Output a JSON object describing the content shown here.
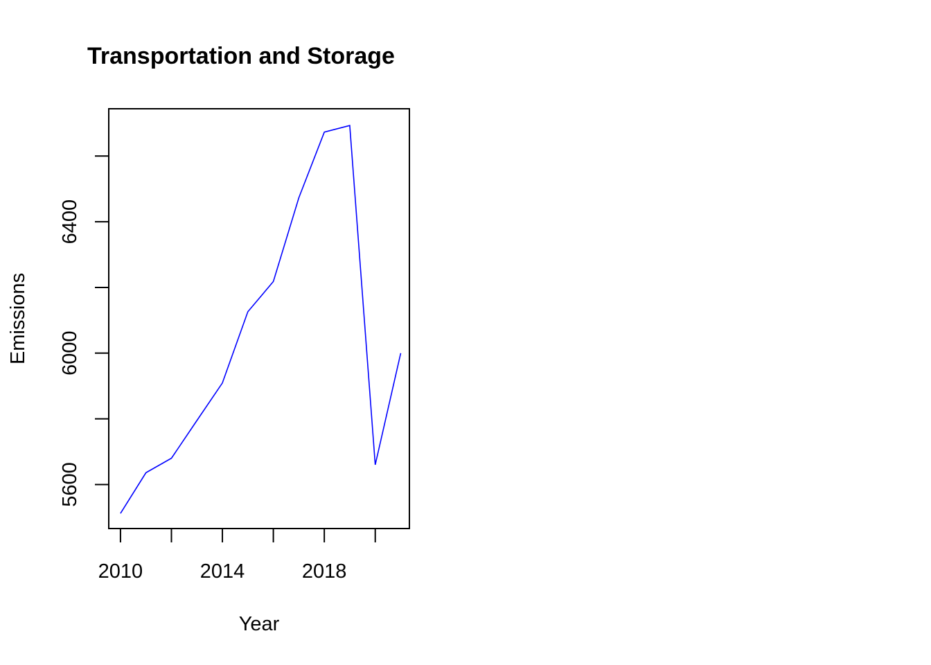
{
  "chart_data": {
    "type": "line",
    "title": "Transportation and Storage",
    "xlabel": "Year",
    "ylabel": "Emissions",
    "x": [
      2010,
      2011,
      2012,
      2013,
      2014,
      2015,
      2016,
      2017,
      2018,
      2019,
      2020,
      2021
    ],
    "series": [
      {
        "values": [
          5512,
          5636,
          5680,
          5795,
          5909,
          6126,
          6218,
          6473,
          6673,
          6693,
          5660,
          6000
        ],
        "color": "#0000ff"
      }
    ],
    "xlim": [
      2009.54,
      2021.34
    ],
    "ylim": [
      5466,
      6744
    ],
    "x_ticks": [
      2010,
      2012,
      2014,
      2016,
      2018,
      2020
    ],
    "x_tick_labels": [
      "2010",
      "",
      "2014",
      "",
      "2018",
      ""
    ],
    "y_ticks": [
      5600,
      5800,
      6000,
      6200,
      6400,
      6600
    ],
    "y_tick_labels": [
      "5600",
      "",
      "6000",
      "",
      "6400",
      ""
    ],
    "grid": false,
    "legend": "none"
  }
}
